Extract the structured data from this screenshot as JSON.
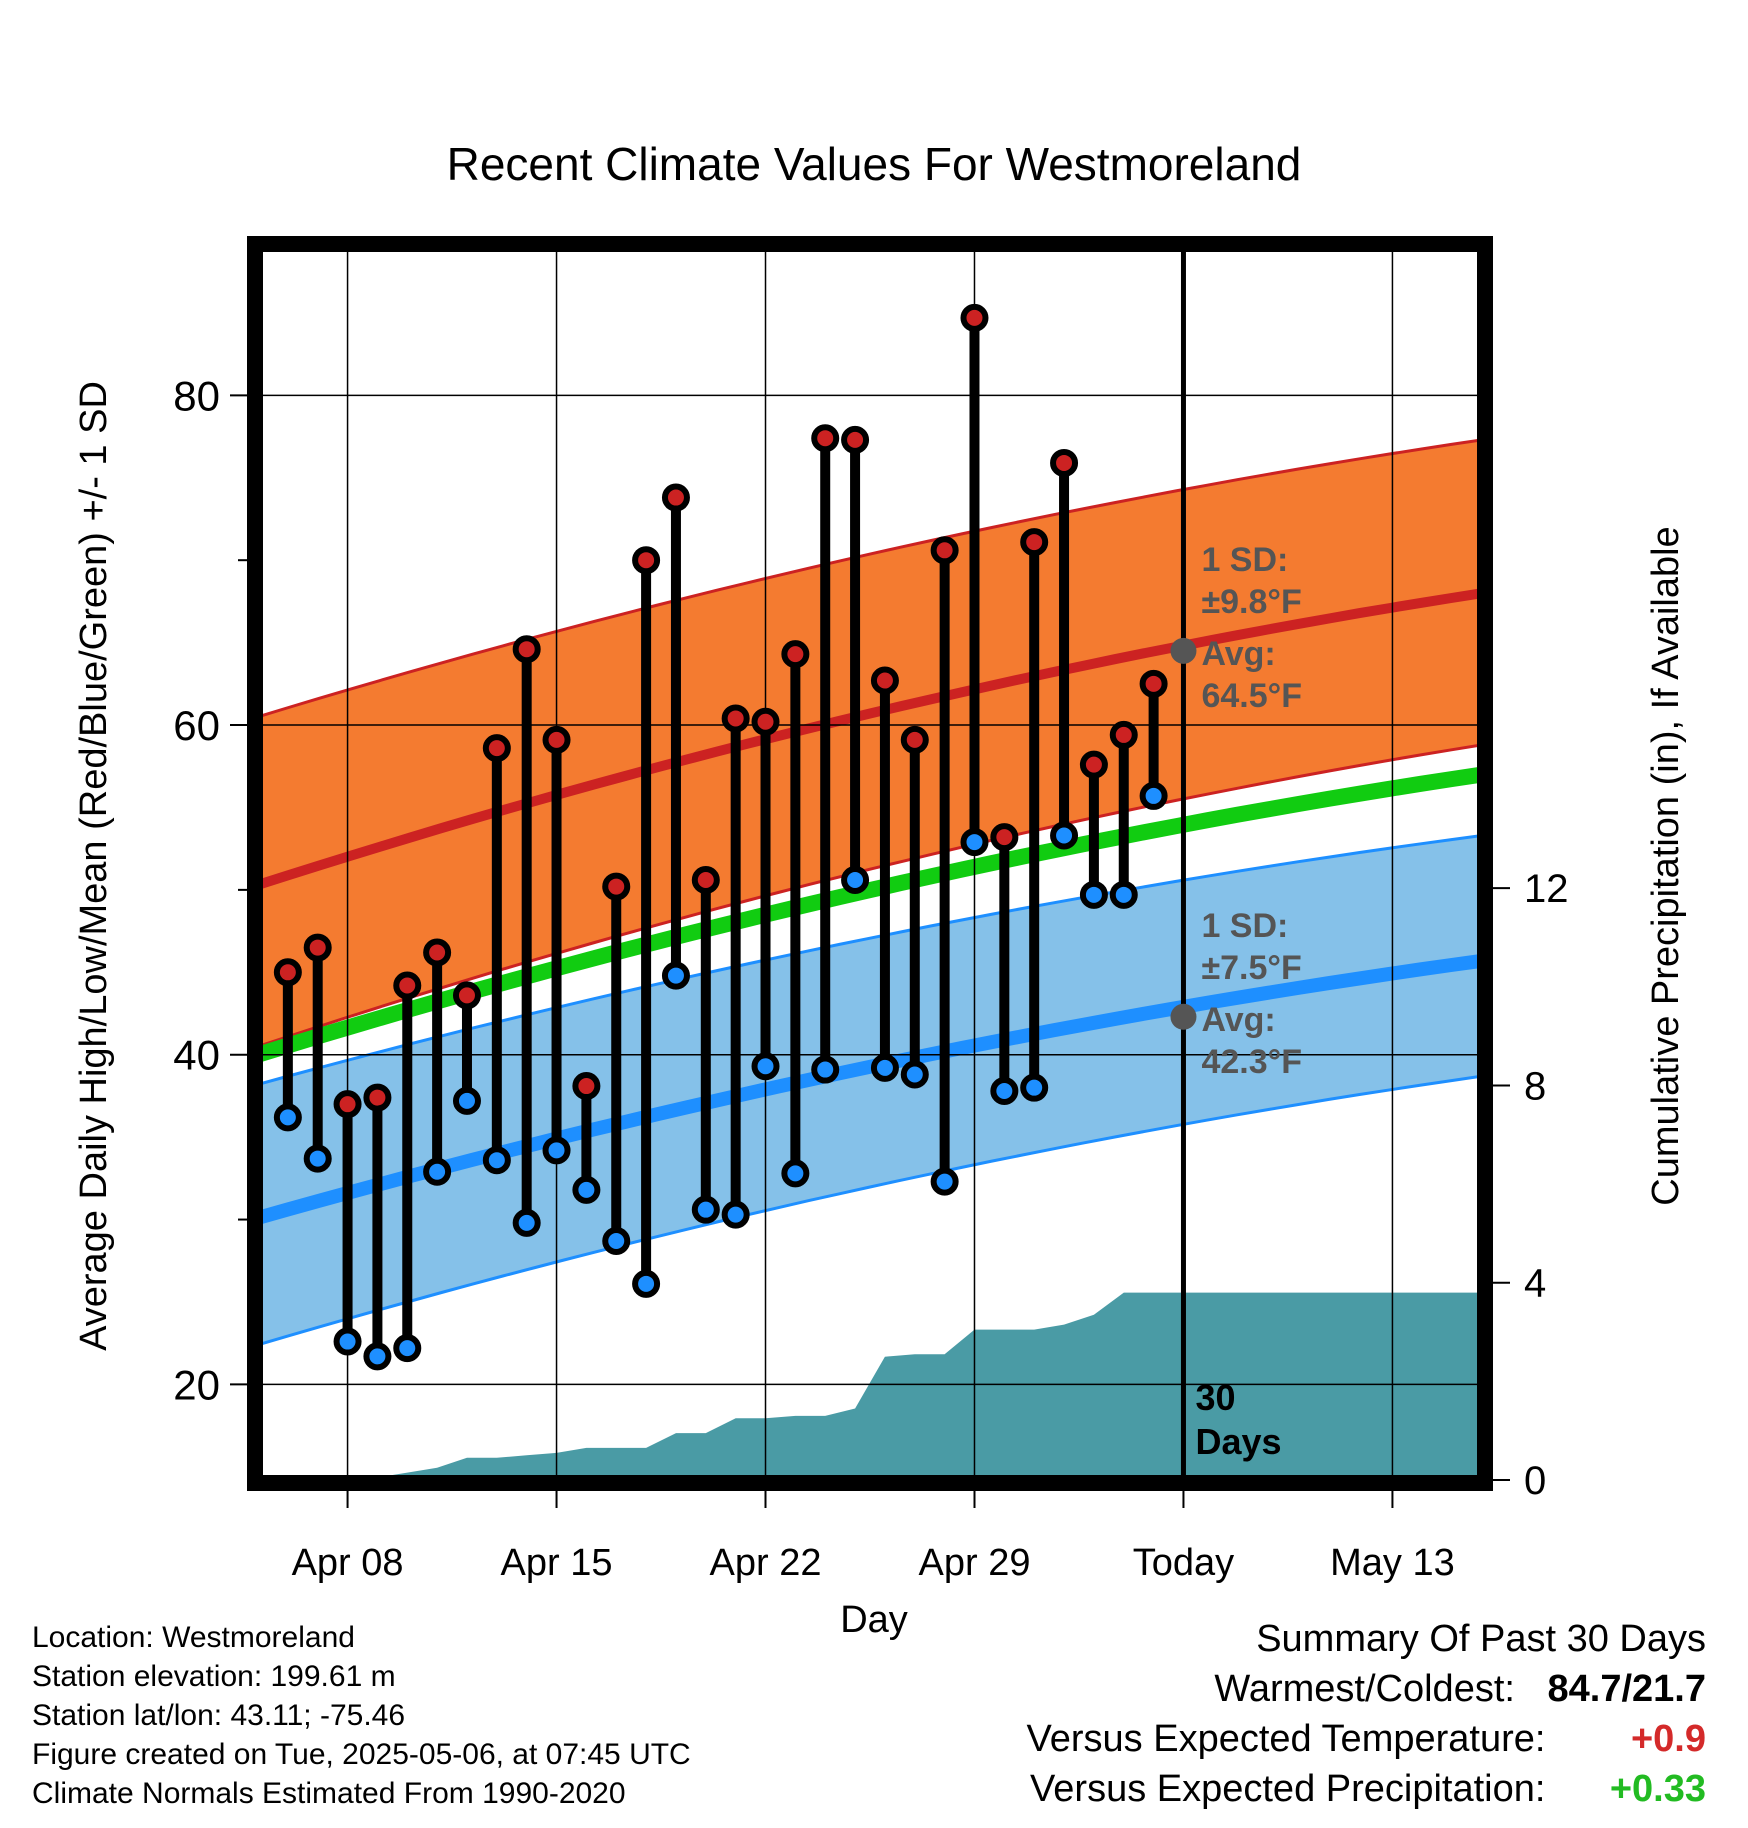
{
  "chart_data": {
    "type": "line",
    "title": "Recent Climate Values For Westmoreland",
    "xlabel": "Day",
    "ylabel": "Average Daily High/Low/Mean (Red/Blue/Green) +/- 1 SD",
    "ylabel_right": "Cumulative Precipitation (in), If Available",
    "x_range": [
      "2025-04-05",
      "2025-05-16"
    ],
    "ylim": [
      14.2,
      89
    ],
    "ylim_right": [
      0,
      25
    ],
    "y_ticks": [
      "20",
      "40",
      "60",
      "80"
    ],
    "y_ticks_right": [
      "0",
      "4",
      "8",
      "12"
    ],
    "x_ticks": [
      {
        "date": "2025-04-08",
        "label": "Apr 08"
      },
      {
        "date": "2025-04-15",
        "label": "Apr 15"
      },
      {
        "date": "2025-04-22",
        "label": "Apr 22"
      },
      {
        "date": "2025-04-29",
        "label": "Apr 29"
      },
      {
        "date": "2025-05-06",
        "label": "Today"
      },
      {
        "date": "2025-05-13",
        "label": "May 13"
      }
    ],
    "grid": true,
    "today": "2025-05-06",
    "today_label": "30 Days",
    "normals": {
      "high_avg": {
        "start": 50.3,
        "end": 68.0,
        "color": "#cc2222"
      },
      "high_band": {
        "start_lo": 40.5,
        "start_hi": 60.5,
        "end_lo": 58.8,
        "end_hi": 77.3,
        "color": "#f47b30"
      },
      "mean_avg": {
        "start": 40.0,
        "end": 57.0,
        "color": "#11cc11"
      },
      "low_avg": {
        "start": 30.1,
        "end": 45.7,
        "color": "#1e8fff"
      },
      "low_band": {
        "start_lo": 22.4,
        "start_hi": 38.2,
        "end_lo": 38.7,
        "end_hi": 53.3,
        "color": "#85c1e9"
      }
    },
    "today_high": {
      "sd_label": "1 SD:",
      "sd_value": "±9.8°F",
      "avg_label": "Avg:",
      "avg_value": "64.5°F",
      "value": 64.5
    },
    "today_low": {
      "sd_label": "1 SD:",
      "sd_value": "±7.5°F",
      "avg_label": "Avg:",
      "avg_value": "42.3°F",
      "value": 42.3
    },
    "daily": {
      "dates": [
        "2025-04-06",
        "2025-04-07",
        "2025-04-08",
        "2025-04-09",
        "2025-04-10",
        "2025-04-11",
        "2025-04-12",
        "2025-04-13",
        "2025-04-14",
        "2025-04-15",
        "2025-04-16",
        "2025-04-17",
        "2025-04-18",
        "2025-04-19",
        "2025-04-20",
        "2025-04-21",
        "2025-04-22",
        "2025-04-23",
        "2025-04-24",
        "2025-04-25",
        "2025-04-26",
        "2025-04-27",
        "2025-04-28",
        "2025-04-29",
        "2025-04-30",
        "2025-05-01",
        "2025-05-02",
        "2025-05-03",
        "2025-05-04",
        "2025-05-05"
      ],
      "highs": [
        45.0,
        46.5,
        37.0,
        37.4,
        44.2,
        46.2,
        43.6,
        58.6,
        64.6,
        59.1,
        38.1,
        50.2,
        70.0,
        73.8,
        50.6,
        60.4,
        60.2,
        64.3,
        77.4,
        77.3,
        62.7,
        59.1,
        70.6,
        84.7,
        53.2,
        71.1,
        75.9,
        57.6,
        59.4,
        62.5
      ],
      "lows": [
        36.2,
        33.7,
        22.6,
        21.7,
        22.2,
        32.9,
        37.2,
        33.6,
        29.8,
        34.2,
        31.8,
        28.7,
        26.1,
        44.8,
        30.6,
        30.3,
        39.3,
        32.8,
        39.1,
        50.6,
        39.2,
        38.8,
        32.3,
        52.9,
        37.8,
        38.0,
        53.3,
        49.7,
        49.7,
        55.7
      ]
    },
    "precip_cumulative": {
      "dates": [
        "2025-04-05",
        "2025-04-06",
        "2025-04-07",
        "2025-04-08",
        "2025-04-09",
        "2025-04-10",
        "2025-04-11",
        "2025-04-12",
        "2025-04-13",
        "2025-04-14",
        "2025-04-15",
        "2025-04-16",
        "2025-04-17",
        "2025-04-18",
        "2025-04-19",
        "2025-04-20",
        "2025-04-21",
        "2025-04-22",
        "2025-04-23",
        "2025-04-24",
        "2025-04-25",
        "2025-04-26",
        "2025-04-27",
        "2025-04-28",
        "2025-04-29",
        "2025-04-30",
        "2025-05-01",
        "2025-05-02",
        "2025-05-03",
        "2025-05-04",
        "2025-05-05",
        "2025-05-06",
        "2025-05-16"
      ],
      "values": [
        0,
        0,
        0,
        0,
        0.05,
        0.15,
        0.25,
        0.45,
        0.45,
        0.5,
        0.55,
        0.65,
        0.65,
        0.65,
        0.95,
        0.95,
        1.25,
        1.25,
        1.3,
        1.3,
        1.45,
        2.5,
        2.55,
        2.55,
        3.05,
        3.05,
        3.05,
        3.15,
        3.35,
        3.8,
        3.8,
        3.8,
        3.8
      ],
      "color": "#4a9ba5"
    }
  },
  "info": {
    "location": "Location: Westmoreland",
    "elevation": "Station elevation: 199.61 m",
    "latlon": "Station lat/lon: 43.11; -75.46",
    "created": "Figure created on Tue, 2025-05-06, at 07:45 UTC",
    "normals": "Climate Normals Estimated From 1990-2020"
  },
  "summary": {
    "heading": "Summary Of Past 30 Days",
    "warm_cold_label": "Warmest/Coldest:",
    "warm_cold_value": "84.7/21.7",
    "temp_label": "Versus Expected Temperature:",
    "temp_value": "+0.9",
    "temp_color": "#d42a2a",
    "precip_label": "Versus Expected Precipitation:",
    "precip_value": "+0.33",
    "precip_color": "#22bb22"
  }
}
